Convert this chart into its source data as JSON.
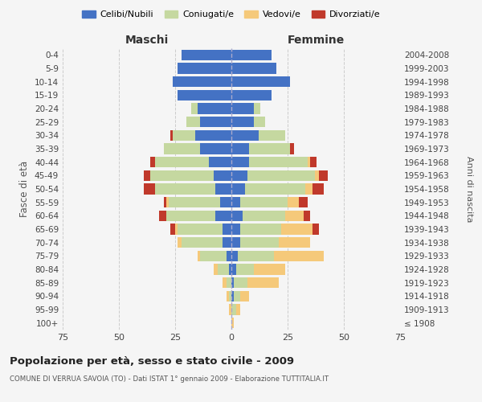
{
  "age_groups": [
    "100+",
    "95-99",
    "90-94",
    "85-89",
    "80-84",
    "75-79",
    "70-74",
    "65-69",
    "60-64",
    "55-59",
    "50-54",
    "45-49",
    "40-44",
    "35-39",
    "30-34",
    "25-29",
    "20-24",
    "15-19",
    "10-14",
    "5-9",
    "0-4"
  ],
  "birth_years": [
    "≤ 1908",
    "1909-1913",
    "1914-1918",
    "1919-1923",
    "1924-1928",
    "1929-1933",
    "1934-1938",
    "1939-1943",
    "1944-1948",
    "1949-1953",
    "1954-1958",
    "1959-1963",
    "1964-1968",
    "1969-1973",
    "1974-1978",
    "1979-1983",
    "1984-1988",
    "1989-1993",
    "1994-1998",
    "1999-2003",
    "2004-2008"
  ],
  "males": {
    "celibi": [
      0,
      0,
      0,
      0,
      1,
      2,
      4,
      4,
      7,
      5,
      7,
      8,
      10,
      14,
      16,
      14,
      15,
      24,
      26,
      24,
      22
    ],
    "coniugati": [
      0,
      0,
      1,
      2,
      5,
      12,
      18,
      20,
      22,
      23,
      27,
      28,
      24,
      16,
      10,
      6,
      3,
      0,
      0,
      0,
      0
    ],
    "vedovi": [
      0,
      1,
      1,
      2,
      2,
      1,
      2,
      1,
      0,
      1,
      0,
      0,
      0,
      0,
      0,
      0,
      0,
      0,
      0,
      0,
      0
    ],
    "divorziati": [
      0,
      0,
      0,
      0,
      0,
      0,
      0,
      2,
      3,
      1,
      5,
      3,
      2,
      0,
      1,
      0,
      0,
      0,
      0,
      0,
      0
    ]
  },
  "females": {
    "nubili": [
      0,
      0,
      1,
      1,
      2,
      3,
      4,
      4,
      5,
      4,
      6,
      7,
      8,
      8,
      12,
      10,
      10,
      18,
      26,
      20,
      18
    ],
    "coniugate": [
      0,
      2,
      3,
      6,
      8,
      16,
      17,
      18,
      19,
      21,
      27,
      30,
      26,
      18,
      12,
      5,
      3,
      0,
      0,
      0,
      0
    ],
    "vedove": [
      1,
      2,
      4,
      14,
      14,
      22,
      14,
      14,
      8,
      5,
      3,
      2,
      1,
      0,
      0,
      0,
      0,
      0,
      0,
      0,
      0
    ],
    "divorziate": [
      0,
      0,
      0,
      0,
      0,
      0,
      0,
      3,
      3,
      4,
      5,
      4,
      3,
      2,
      0,
      0,
      0,
      0,
      0,
      0,
      0
    ]
  },
  "colors": {
    "celibi": "#4472c4",
    "coniugati": "#c5d8a0",
    "vedovi": "#f5c97a",
    "divorziati": "#c0392b"
  },
  "xlim": 75,
  "title": "Popolazione per età, sesso e stato civile - 2009",
  "subtitle": "COMUNE DI VERRUA SAVOIA (TO) - Dati ISTAT 1° gennaio 2009 - Elaborazione TUTTITALIA.IT",
  "ylabel": "Fasce di età",
  "ylabel_right": "Anni di nascita",
  "label_maschi": "Maschi",
  "label_femmine": "Femmine",
  "legend_labels": [
    "Celibi/Nubili",
    "Coniugati/e",
    "Vedovi/e",
    "Divorziati/e"
  ],
  "background_color": "#f5f5f5"
}
